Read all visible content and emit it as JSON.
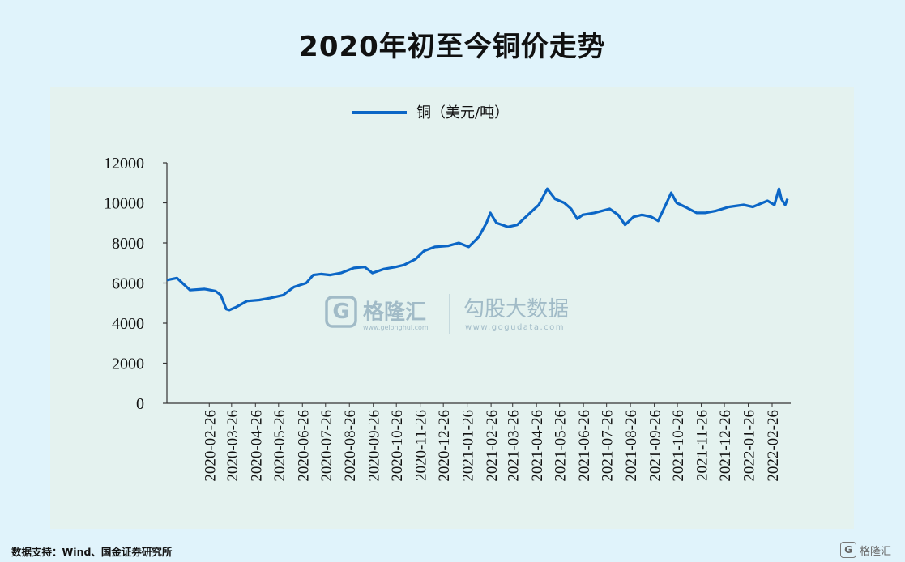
{
  "title": "2020年初至今铜价走势",
  "source": "数据支持：Wind、国金证券研究所",
  "watermark": {
    "brand": "格隆汇",
    "brand_url": "www.gelonghui.com",
    "partner": "勾股大数据",
    "partner_url": "www.gogudata.com"
  },
  "corner_logo": "格隆汇",
  "colors": {
    "line": "#0b66c6",
    "panel": "#e4f2ef",
    "page": "#e0f3fb"
  },
  "chart_data": {
    "type": "line",
    "legend_position": "top-center",
    "grid": false,
    "ylim": [
      0,
      12000
    ],
    "yticks": [
      0,
      2000,
      4000,
      6000,
      8000,
      10000,
      12000
    ],
    "xticks": [
      "2020-02-26",
      "2020-03-26",
      "2020-04-26",
      "2020-05-26",
      "2020-06-26",
      "2020-07-26",
      "2020-08-26",
      "2020-09-26",
      "2020-10-26",
      "2020-11-26",
      "2020-12-26",
      "2021-01-26",
      "2021-02-26",
      "2021-03-26",
      "2021-04-26",
      "2021-05-26",
      "2021-06-26",
      "2021-07-26",
      "2021-08-26",
      "2021-09-26",
      "2021-10-26",
      "2021-11-26",
      "2021-12-26",
      "2022-01-26",
      "2022-02-26"
    ],
    "series": [
      {
        "name": "铜（美元/吨）",
        "x": [
          "2020-01-02",
          "2020-01-15",
          "2020-02-01",
          "2020-02-20",
          "2020-03-05",
          "2020-03-12",
          "2020-03-19",
          "2020-03-23",
          "2020-04-01",
          "2020-04-15",
          "2020-05-01",
          "2020-05-15",
          "2020-06-01",
          "2020-06-15",
          "2020-07-01",
          "2020-07-10",
          "2020-07-20",
          "2020-08-01",
          "2020-08-15",
          "2020-09-01",
          "2020-09-15",
          "2020-09-25",
          "2020-10-10",
          "2020-10-25",
          "2020-11-05",
          "2020-11-20",
          "2020-12-01",
          "2020-12-15",
          "2021-01-01",
          "2021-01-15",
          "2021-01-28",
          "2021-02-10",
          "2021-02-20",
          "2021-02-25",
          "2021-03-05",
          "2021-03-20",
          "2021-04-01",
          "2021-04-15",
          "2021-04-29",
          "2021-05-10",
          "2021-05-20",
          "2021-06-01",
          "2021-06-10",
          "2021-06-18",
          "2021-06-25",
          "2021-07-10",
          "2021-07-30",
          "2021-08-10",
          "2021-08-19",
          "2021-08-30",
          "2021-09-10",
          "2021-09-22",
          "2021-10-01",
          "2021-10-12",
          "2021-10-18",
          "2021-10-25",
          "2021-11-05",
          "2021-11-20",
          "2021-12-01",
          "2021-12-15",
          "2022-01-01",
          "2022-01-20",
          "2022-02-01",
          "2022-02-20",
          "2022-03-01",
          "2022-03-07",
          "2022-03-10",
          "2022-03-15",
          "2022-03-18"
        ],
        "values": [
          6150,
          6250,
          5650,
          5700,
          5600,
          5400,
          4700,
          4650,
          4800,
          5100,
          5150,
          5250,
          5400,
          5800,
          6000,
          6400,
          6450,
          6400,
          6500,
          6750,
          6800,
          6500,
          6700,
          6800,
          6900,
          7200,
          7600,
          7800,
          7850,
          8000,
          7800,
          8300,
          9000,
          9500,
          9000,
          8800,
          8900,
          9400,
          9900,
          10700,
          10200,
          10000,
          9700,
          9200,
          9400,
          9500,
          9700,
          9400,
          8900,
          9300,
          9400,
          9300,
          9100,
          10000,
          10500,
          10000,
          9800,
          9500,
          9500,
          9600,
          9800,
          9900,
          9800,
          10100,
          9900,
          10700,
          10200,
          9900,
          10200
        ]
      }
    ]
  }
}
